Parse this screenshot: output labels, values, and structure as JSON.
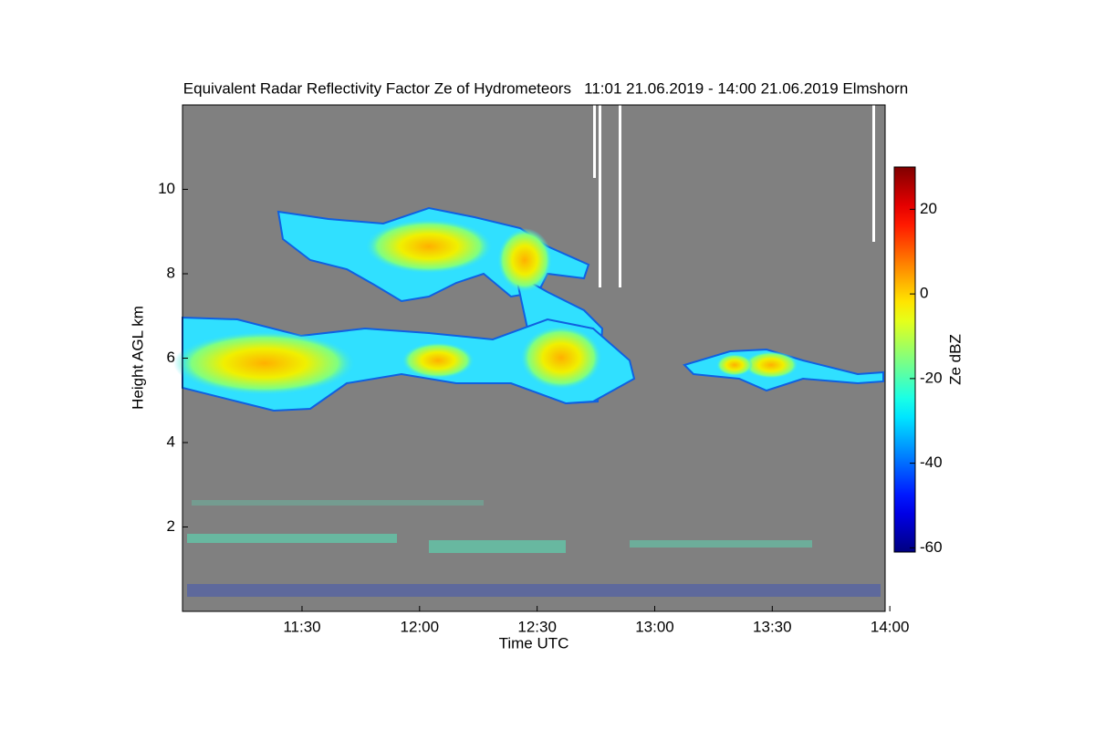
{
  "chart_data": {
    "type": "heatmap",
    "title": "Equivalent Radar Reflectivity Factor Ze of Hydrometeors   11:01 21.06.2019 - 14:00 21.06.2019 Elmshorn",
    "xlabel": "Time UTC",
    "ylabel": "Height AGL km",
    "xlim": [
      659.5,
      838.8
    ],
    "xticks": [
      {
        "value": 690,
        "label": "11:30"
      },
      {
        "value": 720,
        "label": "12:00"
      },
      {
        "value": 750,
        "label": "12:30"
      },
      {
        "value": 780,
        "label": "13:00"
      },
      {
        "value": 810,
        "label": "13:30"
      },
      {
        "value": 840,
        "label": "14:00"
      }
    ],
    "ylim": [
      0,
      12
    ],
    "yticks": [
      2,
      4,
      6,
      8,
      10
    ],
    "colorbar": {
      "label": "Ze dBZ",
      "colormap": "jet",
      "clim": [
        -61,
        30
      ],
      "ticks": [
        20,
        0,
        -20,
        -40,
        -60
      ]
    }
  }
}
